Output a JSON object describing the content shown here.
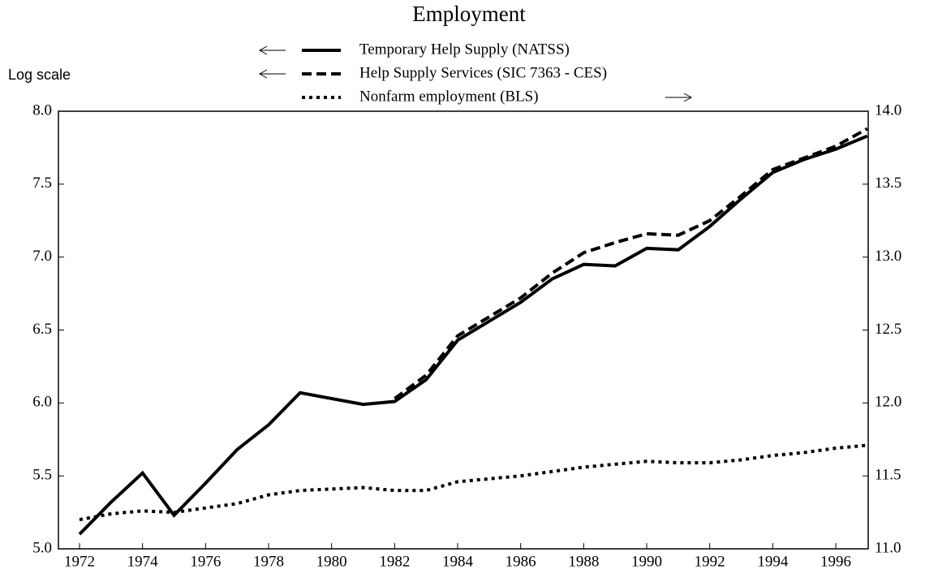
{
  "chart_data": {
    "type": "line",
    "title": "Employment",
    "annotation": "Log scale",
    "log_scale": true,
    "x": [
      1972,
      1973,
      1974,
      1975,
      1976,
      1977,
      1978,
      1979,
      1980,
      1981,
      1982,
      1983,
      1984,
      1985,
      1986,
      1987,
      1988,
      1989,
      1990,
      1991,
      1992,
      1993,
      1994,
      1995,
      1996,
      1997
    ],
    "series": [
      {
        "name": "Temporary Help Supply (NATSS)",
        "color": "#000000",
        "dash": "solid",
        "axis": "y",
        "values": [
          5.1,
          5.32,
          5.52,
          5.23,
          5.45,
          5.68,
          5.85,
          6.07,
          6.03,
          5.99,
          6.01,
          6.16,
          6.43,
          6.56,
          6.69,
          6.85,
          6.95,
          6.94,
          7.06,
          7.05,
          7.21,
          7.4,
          7.58,
          7.67,
          7.74,
          7.83
        ]
      },
      {
        "name": "Help Supply Services (SIC 7363 - CES)",
        "color": "#000000",
        "dash": "dashed",
        "axis": "y",
        "values": [
          null,
          null,
          null,
          null,
          null,
          null,
          null,
          null,
          null,
          null,
          6.03,
          6.19,
          6.46,
          6.59,
          6.72,
          6.89,
          7.03,
          7.1,
          7.16,
          7.15,
          7.25,
          7.42,
          7.6,
          7.68,
          7.76,
          7.88
        ]
      },
      {
        "name": "Nonfarm employment (BLS)",
        "color": "#000000",
        "dash": "dotted",
        "axis": "y2",
        "values": [
          11.2,
          11.24,
          11.26,
          11.25,
          11.28,
          11.31,
          11.37,
          11.4,
          11.41,
          11.42,
          11.4,
          11.4,
          11.46,
          11.48,
          11.5,
          11.53,
          11.56,
          11.58,
          11.6,
          11.59,
          11.59,
          11.61,
          11.64,
          11.66,
          11.69,
          11.71
        ]
      }
    ],
    "xlim": [
      1971.33,
      1997.03
    ],
    "xticks": [
      1972,
      1974,
      1976,
      1978,
      1980,
      1982,
      1984,
      1986,
      1988,
      1990,
      1992,
      1994,
      1996
    ],
    "ylim": [
      5,
      8
    ],
    "yticks": [
      {
        "value": 5,
        "label": "5.0"
      },
      5.5,
      {
        "value": 6,
        "label": "6.0"
      },
      6.5,
      {
        "value": 7,
        "label": "7.0"
      },
      7.5,
      {
        "value": 8,
        "label": "8.0"
      }
    ],
    "y2lim": [
      11,
      14
    ],
    "y2ticks": [
      {
        "value": 11,
        "label": "11.0"
      },
      11.5,
      {
        "value": 12,
        "label": "12.0"
      },
      12.5,
      {
        "value": 13,
        "label": "13.0"
      },
      13.5,
      {
        "value": 14,
        "label": "14.0"
      }
    ]
  }
}
